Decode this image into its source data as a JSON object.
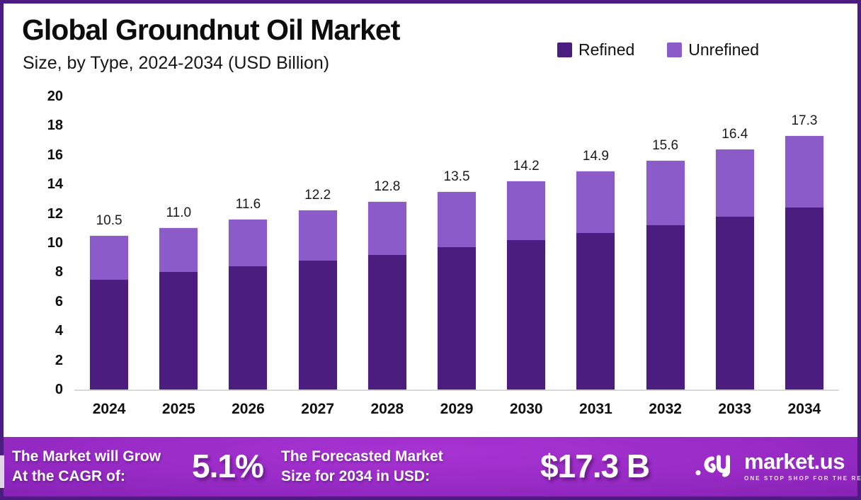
{
  "header": {
    "title": "Global Groundnut Oil Market",
    "subtitle": "Size, by Type, 2024-2034 (USD Billion)"
  },
  "legend": {
    "items": [
      {
        "label": "Refined",
        "color": "#4a1d7f"
      },
      {
        "label": "Unrefined",
        "color": "#8b5cc9"
      }
    ]
  },
  "chart_data": {
    "type": "bar",
    "stacked": true,
    "title": "Global Groundnut Oil Market",
    "subtitle": "Size, by Type, 2024-2034 (USD Billion)",
    "unit": "USD Billion",
    "categories": [
      "2024",
      "2025",
      "2026",
      "2027",
      "2028",
      "2029",
      "2030",
      "2031",
      "2032",
      "2033",
      "2034"
    ],
    "series": [
      {
        "name": "Refined",
        "color": "#4a1d7f",
        "values": [
          7.5,
          8.0,
          8.4,
          8.8,
          9.2,
          9.7,
          10.2,
          10.7,
          11.2,
          11.8,
          12.4
        ]
      },
      {
        "name": "Unrefined",
        "color": "#8b5cc9",
        "values": [
          3.0,
          3.0,
          3.2,
          3.4,
          3.6,
          3.8,
          4.0,
          4.2,
          4.4,
          4.6,
          4.9
        ]
      }
    ],
    "total_labels": [
      "10.5",
      "11.0",
      "11.6",
      "12.2",
      "12.8",
      "13.5",
      "14.2",
      "14.9",
      "15.6",
      "16.4",
      "17.3"
    ],
    "ylim": [
      0,
      20
    ],
    "ytick_step": 2,
    "grid": false,
    "legend_position": "top-right",
    "xlabel": "",
    "ylabel": ""
  },
  "footer": {
    "cagr_label_line1": "The Market will Grow",
    "cagr_label_line2": "At the CAGR of:",
    "cagr_value": "5.1%",
    "forecast_label_line1": "The Forecasted Market",
    "forecast_label_line2": "Size for 2034 in USD:",
    "forecast_value": "$17.3 B",
    "brand": {
      "name": "market.us",
      "tagline": "ONE STOP SHOP FOR THE REPORTS"
    }
  }
}
